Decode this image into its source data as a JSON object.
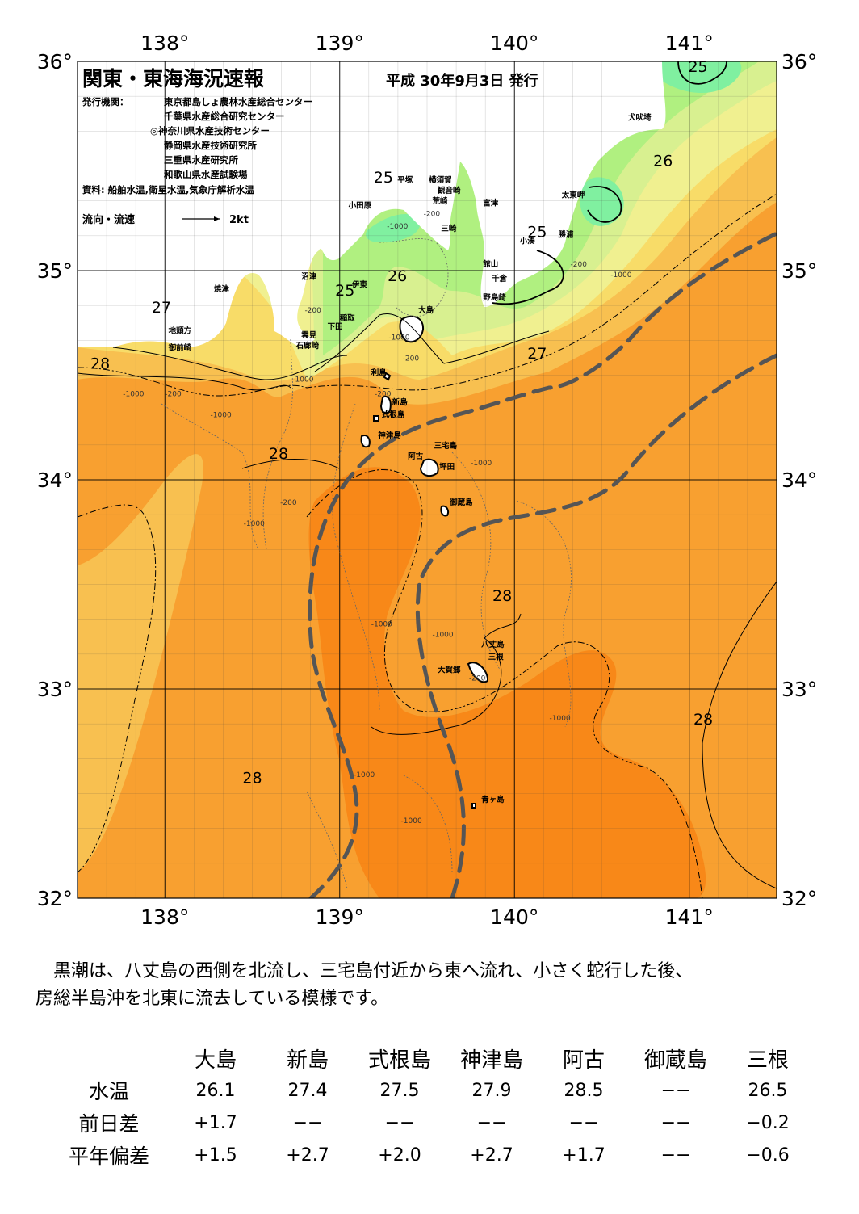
{
  "header": {
    "title": "関東・東海海況速報",
    "date": "平成 30年9月3日 発行",
    "issuer_label": "発行機関：",
    "issuers": [
      "東京都島しょ農林水産総合センター",
      "千葉県水産総合研究センター",
      "◎神奈川県水産技術センター",
      "静岡県水産技術研究所",
      "三重県水産研究所",
      "和歌山県水産試験場"
    ],
    "source": "資料: 船舶水温,衛星水温,気象庁解析水温",
    "legend_label": "流向・流速",
    "legend_speed": "2kt"
  },
  "axes": {
    "lon_labels": [
      "138°",
      "139°",
      "140°",
      "141°"
    ],
    "lat_labels": [
      "36°",
      "35°",
      "34°",
      "33°",
      "32°"
    ],
    "lon_range": [
      137.5,
      141.5
    ],
    "lat_range": [
      32,
      36
    ]
  },
  "colors": {
    "sea_28": "#f8a030",
    "sea_28_5": "#f88818",
    "sea_27": "#f8c050",
    "sea_26_5": "#f8dc68",
    "sea_26": "#f0f090",
    "sea_25_5": "#d8f090",
    "sea_25": "#b0f080",
    "sea_24": "#80f0a0",
    "land": "#ffffff",
    "kuroshio": "#555555"
  },
  "isotherm_labels": [
    {
      "text": "25",
      "lon": 141.05,
      "lat": 35.95
    },
    {
      "text": "26",
      "lon": 140.85,
      "lat": 35.5
    },
    {
      "text": "25",
      "lon": 139.25,
      "lat": 35.42
    },
    {
      "text": "25",
      "lon": 140.13,
      "lat": 35.16
    },
    {
      "text": "26",
      "lon": 139.33,
      "lat": 34.95
    },
    {
      "text": "25",
      "lon": 139.03,
      "lat": 34.88
    },
    {
      "text": "27",
      "lon": 137.98,
      "lat": 34.8
    },
    {
      "text": "27",
      "lon": 140.13,
      "lat": 34.58
    },
    {
      "text": "28",
      "lon": 137.63,
      "lat": 34.53
    },
    {
      "text": "28",
      "lon": 138.65,
      "lat": 34.1
    },
    {
      "text": "28",
      "lon": 139.93,
      "lat": 33.42
    },
    {
      "text": "28",
      "lon": 141.08,
      "lat": 32.83
    },
    {
      "text": "28",
      "lon": 138.5,
      "lat": 32.55
    }
  ],
  "places": [
    {
      "name": "犬吠埼",
      "lon": 140.65,
      "lat": 35.72
    },
    {
      "name": "太東岬",
      "lon": 140.27,
      "lat": 35.35
    },
    {
      "name": "勝浦",
      "lon": 140.25,
      "lat": 35.16
    },
    {
      "name": "小湊",
      "lon": 140.03,
      "lat": 35.13
    },
    {
      "name": "富津",
      "lon": 139.82,
      "lat": 35.31
    },
    {
      "name": "横須賀",
      "lon": 139.51,
      "lat": 35.42
    },
    {
      "name": "平塚",
      "lon": 139.33,
      "lat": 35.42
    },
    {
      "name": "観音崎",
      "lon": 139.56,
      "lat": 35.37
    },
    {
      "name": "荒崎",
      "lon": 139.53,
      "lat": 35.32
    },
    {
      "name": "三崎",
      "lon": 139.58,
      "lat": 35.19
    },
    {
      "name": "小田原",
      "lon": 139.05,
      "lat": 35.3
    },
    {
      "name": "館山",
      "lon": 139.82,
      "lat": 35.02
    },
    {
      "name": "千倉",
      "lon": 139.87,
      "lat": 34.95
    },
    {
      "name": "野島崎",
      "lon": 139.82,
      "lat": 34.86
    },
    {
      "name": "沼津",
      "lon": 138.78,
      "lat": 34.96
    },
    {
      "name": "伊東",
      "lon": 139.07,
      "lat": 34.92
    },
    {
      "name": "稲取",
      "lon": 139.0,
      "lat": 34.76
    },
    {
      "name": "下田",
      "lon": 138.93,
      "lat": 34.72
    },
    {
      "name": "雲見",
      "lon": 138.78,
      "lat": 34.68
    },
    {
      "name": "石廊崎",
      "lon": 138.75,
      "lat": 34.63
    },
    {
      "name": "大島",
      "lon": 139.45,
      "lat": 34.8
    },
    {
      "name": "焼津",
      "lon": 138.28,
      "lat": 34.9
    },
    {
      "name": "地頭方",
      "lon": 138.02,
      "lat": 34.7
    },
    {
      "name": "御前崎",
      "lon": 138.02,
      "lat": 34.62
    },
    {
      "name": "利島",
      "lon": 139.18,
      "lat": 34.5
    },
    {
      "name": "新島",
      "lon": 139.3,
      "lat": 34.36
    },
    {
      "name": "式根島",
      "lon": 139.24,
      "lat": 34.3
    },
    {
      "name": "神津島",
      "lon": 139.22,
      "lat": 34.2
    },
    {
      "name": "阿古",
      "lon": 139.39,
      "lat": 34.1
    },
    {
      "name": "三宅島",
      "lon": 139.54,
      "lat": 34.15
    },
    {
      "name": "坪田",
      "lon": 139.57,
      "lat": 34.05
    },
    {
      "name": "御蔵島",
      "lon": 139.63,
      "lat": 33.88
    },
    {
      "name": "八丈島",
      "lon": 139.81,
      "lat": 33.2
    },
    {
      "name": "三根",
      "lon": 139.85,
      "lat": 33.14
    },
    {
      "name": "大賀郷",
      "lon": 139.56,
      "lat": 33.08
    },
    {
      "name": "青ヶ島",
      "lon": 139.81,
      "lat": 32.46
    }
  ],
  "depth_labels": [
    {
      "text": "-200",
      "lon": 139.48,
      "lat": 35.26
    },
    {
      "text": "-1000",
      "lon": 139.27,
      "lat": 35.2
    },
    {
      "text": "-200",
      "lon": 140.32,
      "lat": 35.02
    },
    {
      "text": "-1000",
      "lon": 140.55,
      "lat": 34.97
    },
    {
      "text": "-200",
      "lon": 138.8,
      "lat": 34.8
    },
    {
      "text": "-1000",
      "lon": 139.28,
      "lat": 34.67
    },
    {
      "text": "-200",
      "lon": 139.36,
      "lat": 34.57
    },
    {
      "text": "-1000",
      "lon": 138.73,
      "lat": 34.47
    },
    {
      "text": "-1000",
      "lon": 137.76,
      "lat": 34.4
    },
    {
      "text": "-200",
      "lon": 138.0,
      "lat": 34.4
    },
    {
      "text": "-1000",
      "lon": 138.26,
      "lat": 34.3
    },
    {
      "text": "-200",
      "lon": 139.2,
      "lat": 34.4
    },
    {
      "text": "-1000",
      "lon": 139.75,
      "lat": 34.07
    },
    {
      "text": "-200",
      "lon": 138.66,
      "lat": 33.88
    },
    {
      "text": "-1000",
      "lon": 138.45,
      "lat": 33.78
    },
    {
      "text": "-1000",
      "lon": 139.18,
      "lat": 33.3
    },
    {
      "text": "-1000",
      "lon": 139.53,
      "lat": 33.25
    },
    {
      "text": "-200",
      "lon": 139.74,
      "lat": 33.04
    },
    {
      "text": "-1000",
      "lon": 140.2,
      "lat": 32.85
    },
    {
      "text": "-1000",
      "lon": 139.08,
      "lat": 32.58
    },
    {
      "text": "-1000",
      "lon": 139.35,
      "lat": 32.36
    }
  ],
  "summary": {
    "line1": "黒潮は、八丈島の西側を北流し、三宅島付近から東へ流れ、小さく蛇行した後、",
    "line2": "房総半島沖を北東に流去している模様です。"
  },
  "table": {
    "stations": [
      "大島",
      "新島",
      "式根島",
      "神津島",
      "阿古",
      "御蔵島",
      "三根"
    ],
    "rows": [
      {
        "label": "水温",
        "values": [
          "26.1",
          "27.4",
          "27.5",
          "27.9",
          "28.5",
          "−−",
          "26.5"
        ]
      },
      {
        "label": "前日差",
        "values": [
          "+1.7",
          "−−",
          "−−",
          "−−",
          "−−",
          "−−",
          "−0.2"
        ]
      },
      {
        "label": "平年偏差",
        "values": [
          "+1.5",
          "+2.7",
          "+2.0",
          "+2.7",
          "+1.7",
          "−−",
          "−0.6"
        ]
      }
    ]
  }
}
